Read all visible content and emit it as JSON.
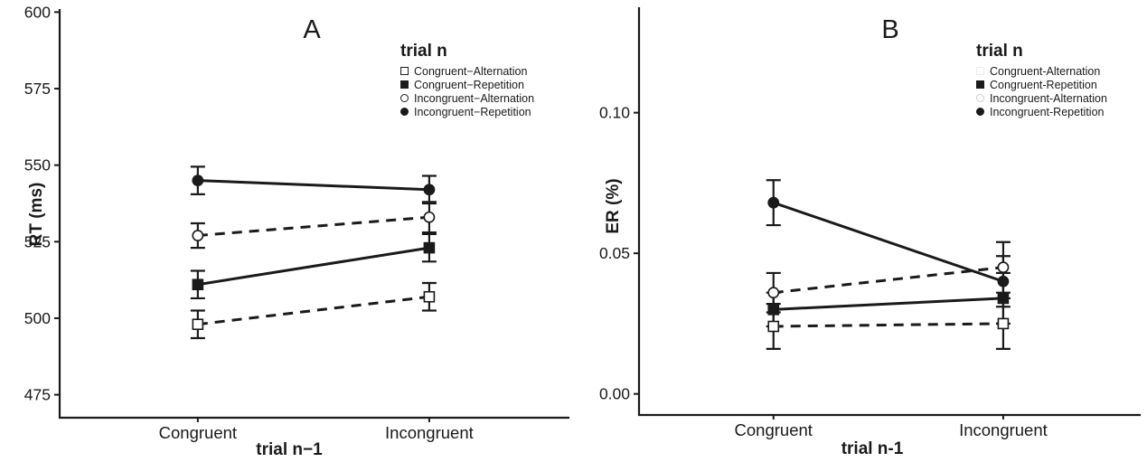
{
  "figure": {
    "background": "#ffffff",
    "ink_color": "#1a1a1a",
    "panel_labels": [
      "A",
      "B"
    ]
  },
  "chart_data": [
    {
      "type": "line",
      "panel": "A",
      "ylabel": "RT (ms)",
      "xlabel": "trial n−1",
      "legend_title": "trial n",
      "legend_position": "top-right-inside",
      "grid": false,
      "categories": [
        "Congruent",
        "Incongruent"
      ],
      "ylim": [
        467.5,
        601
      ],
      "yticks": [
        {
          "value": 475,
          "label": "475"
        },
        {
          "value": 500,
          "label": "500"
        },
        {
          "value": 525,
          "label": "525"
        },
        {
          "value": 550,
          "label": "550"
        },
        {
          "value": 575,
          "label": "575"
        },
        {
          "value": 600,
          "label": "600"
        }
      ],
      "series": [
        {
          "name": "Congruent−Alternation",
          "marker": "open-square",
          "line": "dashed",
          "values": [
            498,
            507
          ],
          "errors": [
            4.5,
            4.5
          ]
        },
        {
          "name": "Congruent−Repetition",
          "marker": "filled-square",
          "line": "solid",
          "values": [
            511,
            523
          ],
          "errors": [
            4.5,
            4.5
          ]
        },
        {
          "name": "Incongruent−Alternation",
          "marker": "open-circle",
          "line": "dashed",
          "values": [
            527,
            533
          ],
          "errors": [
            4,
            5
          ]
        },
        {
          "name": "Incongruent−Repetition",
          "marker": "filled-circle",
          "line": "solid",
          "values": [
            545,
            542
          ],
          "errors": [
            4.5,
            4.5
          ]
        }
      ]
    },
    {
      "type": "line",
      "panel": "B",
      "ylabel": "ER (%)",
      "xlabel": "trial n-1",
      "legend_title": "trial n",
      "legend_position": "top-right-inside",
      "grid": false,
      "categories": [
        "Congruent",
        "Incongruent"
      ],
      "ylim": [
        -0.0075,
        0.1375
      ],
      "yticks": [
        {
          "value": 0.0,
          "label": "0.00"
        },
        {
          "value": 0.05,
          "label": "0.05"
        },
        {
          "value": 0.1,
          "label": "0.10"
        }
      ],
      "series": [
        {
          "name": "Congruent-Alternation",
          "marker": "open-square",
          "line": "dashed",
          "values": [
            0.024,
            0.025
          ],
          "errors": [
            0.008,
            0.009
          ]
        },
        {
          "name": "Congruent-Repetition",
          "marker": "filled-square",
          "line": "solid",
          "values": [
            0.03,
            0.034
          ],
          "errors": [
            0.006,
            0.009
          ]
        },
        {
          "name": "Incongruent-Alternation",
          "marker": "open-circle",
          "line": "dashed",
          "values": [
            0.036,
            0.045
          ],
          "errors": [
            0.007,
            0.009
          ]
        },
        {
          "name": "Incongruent-Repetition",
          "marker": "filled-circle",
          "line": "solid",
          "values": [
            0.068,
            0.04
          ],
          "errors": [
            0.008,
            0.009
          ]
        }
      ]
    }
  ]
}
